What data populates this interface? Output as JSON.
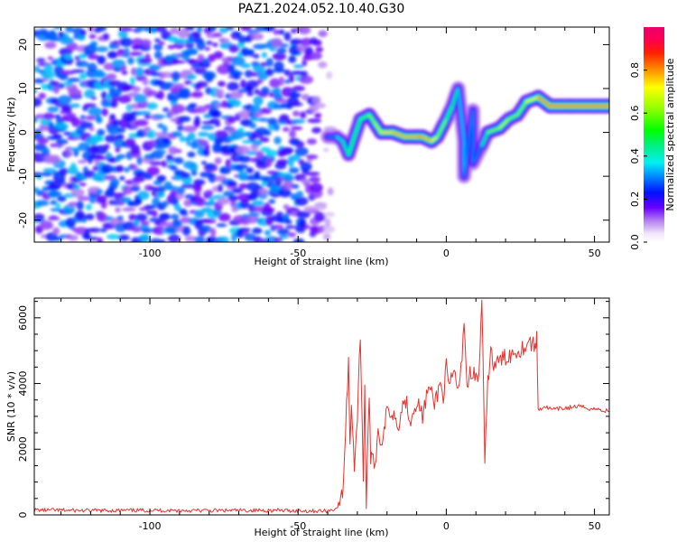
{
  "title": "PAZ1.2024.052.10.40.G30",
  "chart_data": [
    {
      "type": "heatmap",
      "xlabel": "Height of straight line (km)",
      "ylabel": "Frequency (Hz)",
      "xlim": [
        -139,
        55
      ],
      "ylim": [
        -25,
        24
      ],
      "xticks": [
        -100,
        -50,
        0,
        50
      ],
      "yticks": [
        -20,
        -10,
        0,
        10,
        20
      ],
      "colorbar": {
        "label": "Normalized spectral amplitude",
        "range": [
          0,
          1
        ],
        "ticks": [
          0.0,
          0.2,
          0.4,
          0.6,
          0.8
        ],
        "colormap": "gist_ncar-like: white, violet, blue, cyan, green, yellow, orange, red, magenta"
      },
      "noise_region": {
        "x_range": [
          -139,
          -38
        ],
        "y_range": [
          -25,
          24
        ],
        "amplitude": [
          0.05,
          0.3
        ]
      },
      "ridge": [
        {
          "x": -40,
          "y": -1,
          "a": 0.3
        },
        {
          "x": -37,
          "y": -1,
          "a": 0.4
        },
        {
          "x": -35,
          "y": -2,
          "a": 0.45
        },
        {
          "x": -33,
          "y": -5,
          "a": 0.5
        },
        {
          "x": -31,
          "y": -1,
          "a": 0.5
        },
        {
          "x": -29,
          "y": 3,
          "a": 0.55
        },
        {
          "x": -26,
          "y": 4,
          "a": 0.6
        },
        {
          "x": -24,
          "y": 2,
          "a": 0.65
        },
        {
          "x": -22,
          "y": 0,
          "a": 0.75
        },
        {
          "x": -18,
          "y": 0,
          "a": 0.85
        },
        {
          "x": -14,
          "y": -1,
          "a": 0.8
        },
        {
          "x": -10,
          "y": -1,
          "a": 0.88
        },
        {
          "x": -8,
          "y": -1,
          "a": 0.85
        },
        {
          "x": -5,
          "y": -2,
          "a": 0.8
        },
        {
          "x": -3,
          "y": -1,
          "a": 0.7
        },
        {
          "x": 0,
          "y": 3,
          "a": 0.6
        },
        {
          "x": 2,
          "y": 6,
          "a": 0.5
        },
        {
          "x": 4,
          "y": 10,
          "a": 0.45
        },
        {
          "x": 6,
          "y": -2,
          "a": 0.35
        },
        {
          "x": 6,
          "y": -10,
          "a": 0.35
        },
        {
          "x": 9,
          "y": 5,
          "a": 0.3
        },
        {
          "x": 9,
          "y": -7,
          "a": 0.3
        },
        {
          "x": 12,
          "y": -3,
          "a": 0.45
        },
        {
          "x": 14,
          "y": 0,
          "a": 0.6
        },
        {
          "x": 18,
          "y": 1,
          "a": 0.7
        },
        {
          "x": 21,
          "y": 3,
          "a": 0.65
        },
        {
          "x": 24,
          "y": 4,
          "a": 0.6
        },
        {
          "x": 27,
          "y": 7,
          "a": 0.7
        },
        {
          "x": 31,
          "y": 8,
          "a": 0.85
        },
        {
          "x": 35,
          "y": 6,
          "a": 0.9
        },
        {
          "x": 42,
          "y": 6,
          "a": 0.9
        },
        {
          "x": 50,
          "y": 6,
          "a": 0.9
        },
        {
          "x": 55,
          "y": 6,
          "a": 0.9
        }
      ]
    },
    {
      "type": "line",
      "xlabel": "Height of straight line (km)",
      "ylabel": "SNR (10 * v/v)",
      "xlim": [
        -139,
        55
      ],
      "ylim": [
        0,
        6600
      ],
      "xticks": [
        -100,
        -50,
        0,
        50
      ],
      "yticks": [
        0,
        2000,
        4000,
        6000
      ],
      "series": [
        {
          "color": "#e8322d",
          "x": [
            -139,
            -120,
            -100,
            -80,
            -60,
            -45,
            -40,
            -37,
            -35,
            -34,
            -33,
            -32.5,
            -32,
            -31,
            -30,
            -29,
            -28,
            -27.5,
            -27,
            -26,
            -25.5,
            -25,
            -24,
            -23,
            -22,
            -21,
            -20,
            -18,
            -16,
            -14,
            -12,
            -10,
            -8,
            -6,
            -4,
            -2,
            -1,
            0,
            1,
            2,
            3,
            4,
            5,
            6,
            7,
            8,
            9,
            10,
            11,
            12,
            13,
            14,
            15,
            16,
            18,
            20,
            22,
            24,
            26,
            28,
            30,
            30.5,
            31,
            33,
            36,
            40,
            44,
            48,
            52,
            55
          ],
          "y": [
            150,
            130,
            140,
            130,
            140,
            120,
            120,
            200,
            600,
            2500,
            4800,
            2000,
            3500,
            1500,
            3000,
            5500,
            1200,
            4000,
            200,
            3800,
            1300,
            2000,
            1500,
            2600,
            2200,
            2500,
            3200,
            3100,
            2800,
            3600,
            2900,
            3500,
            3000,
            3900,
            3400,
            4000,
            3600,
            4500,
            3800,
            4200,
            4300,
            3700,
            4400,
            6000,
            3900,
            4300,
            4400,
            4100,
            4200,
            6600,
            1500,
            4000,
            5100,
            4500,
            4700,
            4800,
            4900,
            5000,
            5100,
            5300,
            5100,
            5400,
            3200,
            3300,
            3200,
            3250,
            3300,
            3250,
            3200,
            3150
          ]
        }
      ]
    }
  ]
}
